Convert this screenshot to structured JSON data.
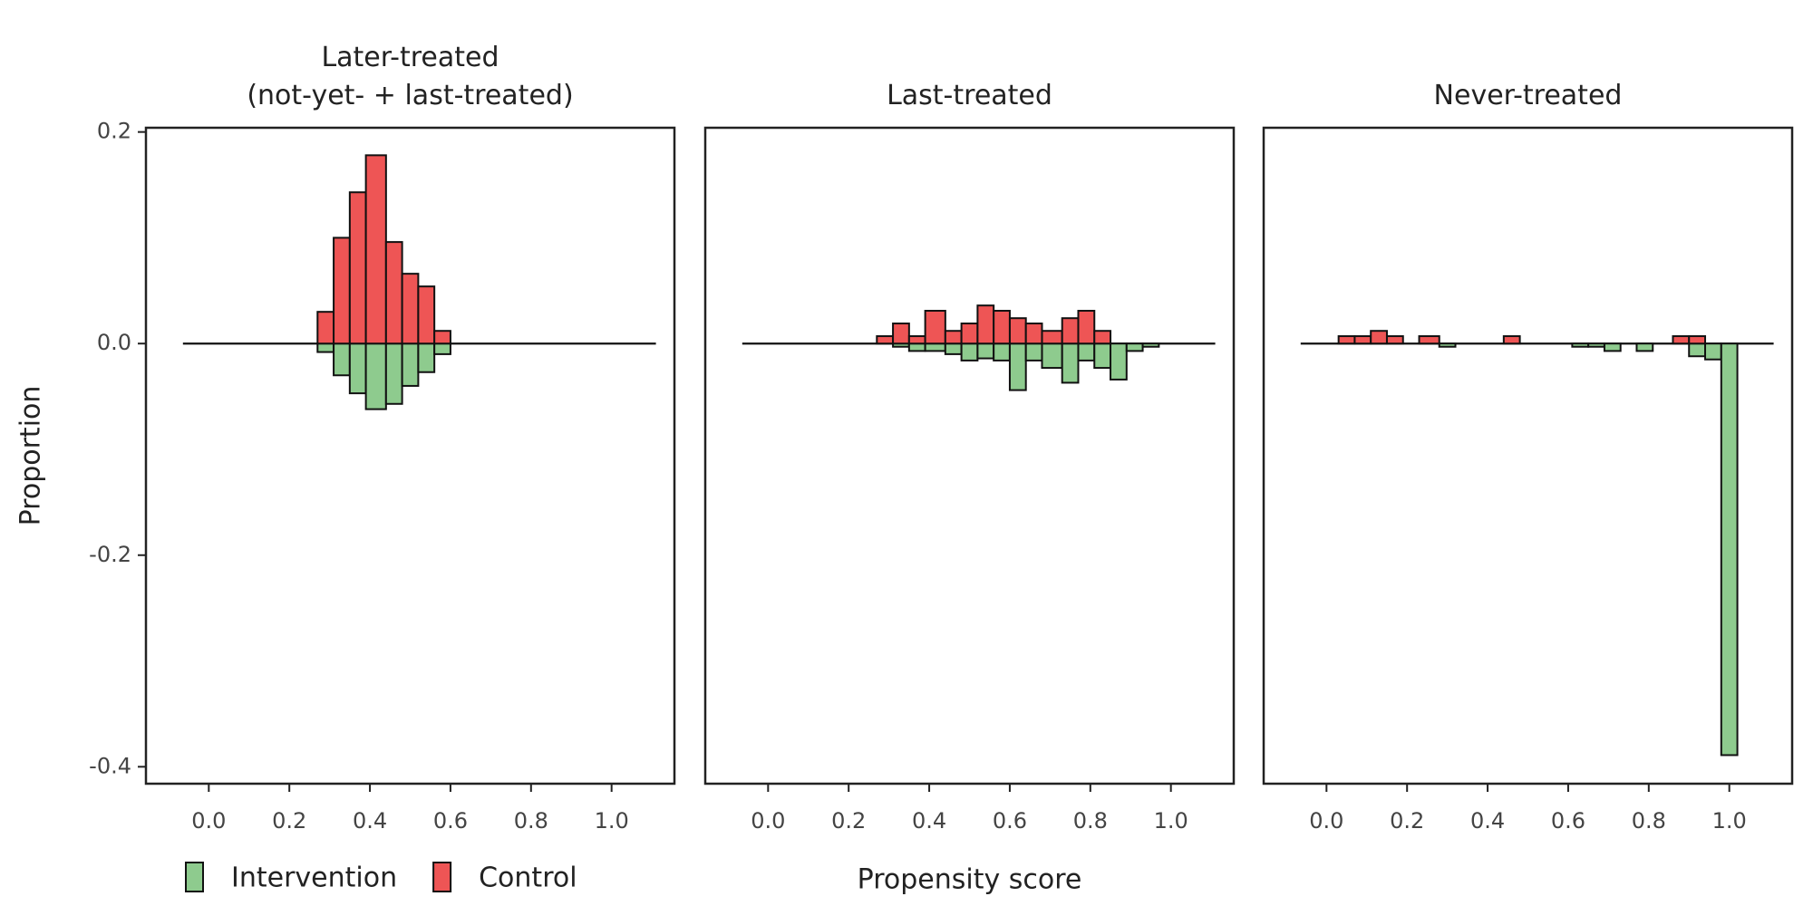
{
  "chart_data": [
    {
      "type": "histogram",
      "title": "Later-treated\n(not-yet- + last-treated)",
      "ylabel": "Proportion",
      "bins": [
        0.27,
        0.31,
        0.35,
        0.39,
        0.44,
        0.48,
        0.52,
        0.56,
        0.6
      ],
      "series": [
        {
          "name": "Intervention",
          "color": "#8ecb8e",
          "values": [
            -0.008,
            -0.03,
            -0.047,
            -0.062,
            -0.057,
            -0.04,
            -0.027,
            -0.01
          ]
        },
        {
          "name": "Control",
          "color": "#ee5555",
          "values": [
            0.03,
            0.1,
            0.143,
            0.178,
            0.096,
            0.066,
            0.054,
            0.012
          ]
        }
      ],
      "xlim": [
        -0.156,
        1.156
      ],
      "ylim": [
        -0.416,
        0.204
      ],
      "xticks": [
        {
          "value": 0,
          "label": "0.0"
        },
        0.2,
        0.4,
        0.6,
        0.8,
        {
          "value": 1,
          "label": "1.0"
        }
      ],
      "yticks": [
        0.2,
        {
          "value": 0,
          "label": "0.0"
        },
        -0.2,
        -0.4
      ]
    },
    {
      "type": "histogram",
      "title": "Last-treated",
      "xlabel": "Propensity score",
      "bins": [
        0.27,
        0.31,
        0.35,
        0.39,
        0.44,
        0.48,
        0.52,
        0.56,
        0.6,
        0.64,
        0.68,
        0.73,
        0.77,
        0.81,
        0.85,
        0.89,
        0.93,
        0.97
      ],
      "series": [
        {
          "name": "Intervention",
          "color": "#8ecb8e",
          "values": [
            0,
            -0.003,
            -0.007,
            -0.007,
            -0.01,
            -0.016,
            -0.014,
            -0.016,
            -0.044,
            -0.016,
            -0.023,
            -0.037,
            -0.016,
            -0.023,
            -0.034,
            -0.007,
            -0.003
          ]
        },
        {
          "name": "Control",
          "color": "#ee5555",
          "values": [
            0.007,
            0.019,
            0.007,
            0.031,
            0.012,
            0.019,
            0.036,
            0.031,
            0.024,
            0.019,
            0.012,
            0.024,
            0.031,
            0.012,
            0,
            0,
            0
          ]
        }
      ],
      "xlim": [
        -0.156,
        1.156
      ],
      "ylim": [
        -0.416,
        0.204
      ],
      "xticks": [
        {
          "value": 0,
          "label": "0.0"
        },
        0.2,
        0.4,
        0.6,
        0.8,
        {
          "value": 1,
          "label": "1.0"
        }
      ]
    },
    {
      "type": "histogram",
      "title": "Never-treated",
      "bins": [
        0.03,
        0.07,
        0.11,
        0.15,
        0.19,
        0.23,
        0.28,
        0.32,
        0.36,
        0.4,
        0.44,
        0.48,
        0.52,
        0.57,
        0.61,
        0.65,
        0.69,
        0.73,
        0.77,
        0.81,
        0.86,
        0.9,
        0.94,
        0.98,
        1.02
      ],
      "series": [
        {
          "name": "Intervention",
          "color": "#8ecb8e",
          "values": [
            0,
            0,
            0,
            0,
            0,
            0,
            -0.003,
            0,
            0,
            0,
            0,
            0,
            0,
            0,
            -0.003,
            -0.003,
            -0.007,
            0,
            -0.007,
            0,
            0,
            -0.012,
            -0.015,
            -0.389
          ]
        },
        {
          "name": "Control",
          "color": "#ee5555",
          "values": [
            0.007,
            0.007,
            0.012,
            0.007,
            0,
            0.007,
            0,
            0,
            0,
            0,
            0.007,
            0,
            0,
            0,
            0,
            0,
            0,
            0,
            0,
            0,
            0.007,
            0.007,
            0,
            0
          ]
        }
      ],
      "xlim": [
        -0.156,
        1.156
      ],
      "ylim": [
        -0.416,
        0.204
      ],
      "xticks": [
        {
          "value": 0,
          "label": "0.0"
        },
        0.2,
        0.4,
        0.6,
        0.8,
        {
          "value": 1,
          "label": "1.0"
        }
      ]
    }
  ]
}
